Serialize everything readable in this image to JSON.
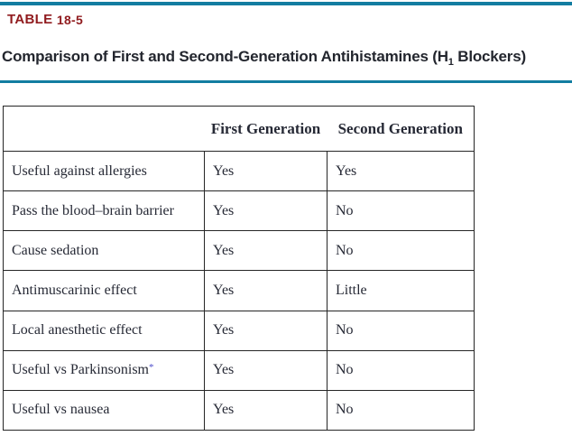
{
  "header": {
    "label_prefix": "TABLE ",
    "label_number": "18-5",
    "title_before": "Comparison of First and Second-Generation Antihistamines (H",
    "title_sub": "1",
    "title_after": " Blockers)"
  },
  "table": {
    "columns": [
      "",
      "First Generation",
      "Second Generation"
    ],
    "rows": [
      {
        "feature": "Useful against allergies",
        "first": "Yes",
        "second": "Yes"
      },
      {
        "feature": "Pass the blood–brain barrier",
        "first": "Yes",
        "second": "No"
      },
      {
        "feature": "Cause sedation",
        "first": "Yes",
        "second": "No"
      },
      {
        "feature": "Antimuscarinic effect",
        "first": "Yes",
        "second": "Little"
      },
      {
        "feature": "Local anesthetic effect",
        "first": "Yes",
        "second": "No"
      },
      {
        "feature": "Useful vs Parkinsonism",
        "footnote": "*",
        "first": "Yes",
        "second": "No"
      },
      {
        "feature": "Useful vs nausea",
        "first": "Yes",
        "second": "No"
      }
    ]
  },
  "colors": {
    "accent_rule": "#137da1",
    "label_red": "#901b1e",
    "title_text": "#23262e",
    "table_text": "#262935",
    "table_border": "#262626",
    "footnote_blue": "#4e4ecb"
  }
}
